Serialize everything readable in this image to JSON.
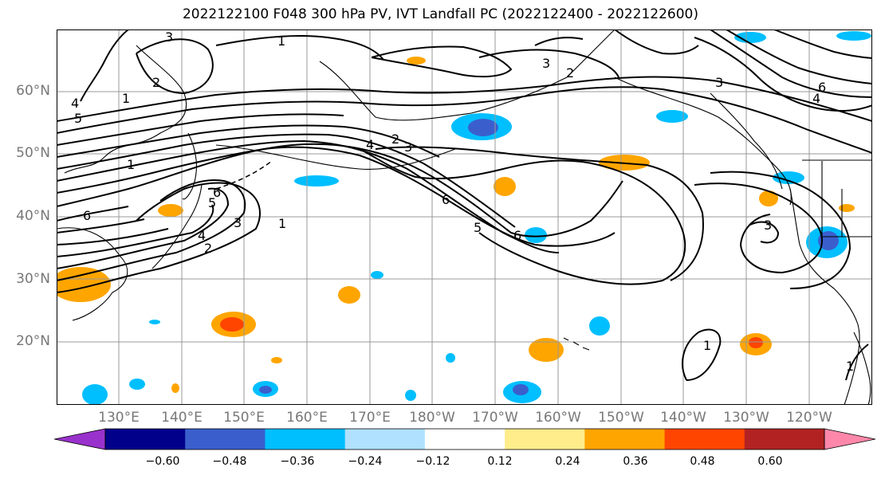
{
  "title": "2022122100 F048 300 hPa PV, IVT Landfall PC (2022122400 - 2022122600)",
  "lat_labels": [
    "60°N",
    "50°N",
    "40°N",
    "30°N",
    "20°N"
  ],
  "lon_labels": [
    "130°E",
    "140°E",
    "150°E",
    "160°E",
    "170°E",
    "180°W",
    "170°W",
    "160°W",
    "150°W",
    "140°W",
    "130°W",
    "120°W"
  ],
  "colorbar": {
    "ticks": [
      "−0.60",
      "−0.48",
      "−0.36",
      "−0.24",
      "−0.12",
      "0.12",
      "0.24",
      "0.36",
      "0.48",
      "0.60"
    ],
    "colors": [
      "#9932cc",
      "#00008b",
      "#3a5fcd",
      "#00bfff",
      "#b0e2ff",
      "#ffffff",
      "#ffec8b",
      "#ffa500",
      "#ff4500",
      "#b22222",
      "#ff88aa"
    ]
  },
  "contour_labels": [
    "3",
    "1",
    "2",
    "1",
    "4",
    "5",
    "1",
    "6",
    "4",
    "2",
    "3",
    "6",
    "5",
    "6",
    "1",
    "3",
    "2",
    "4",
    "3",
    "2",
    "3",
    "5",
    "6",
    "6",
    "4",
    "3",
    "1",
    "1"
  ],
  "colors": {
    "contour": "#000000",
    "graticule": "#999999",
    "coast": "#000000"
  }
}
